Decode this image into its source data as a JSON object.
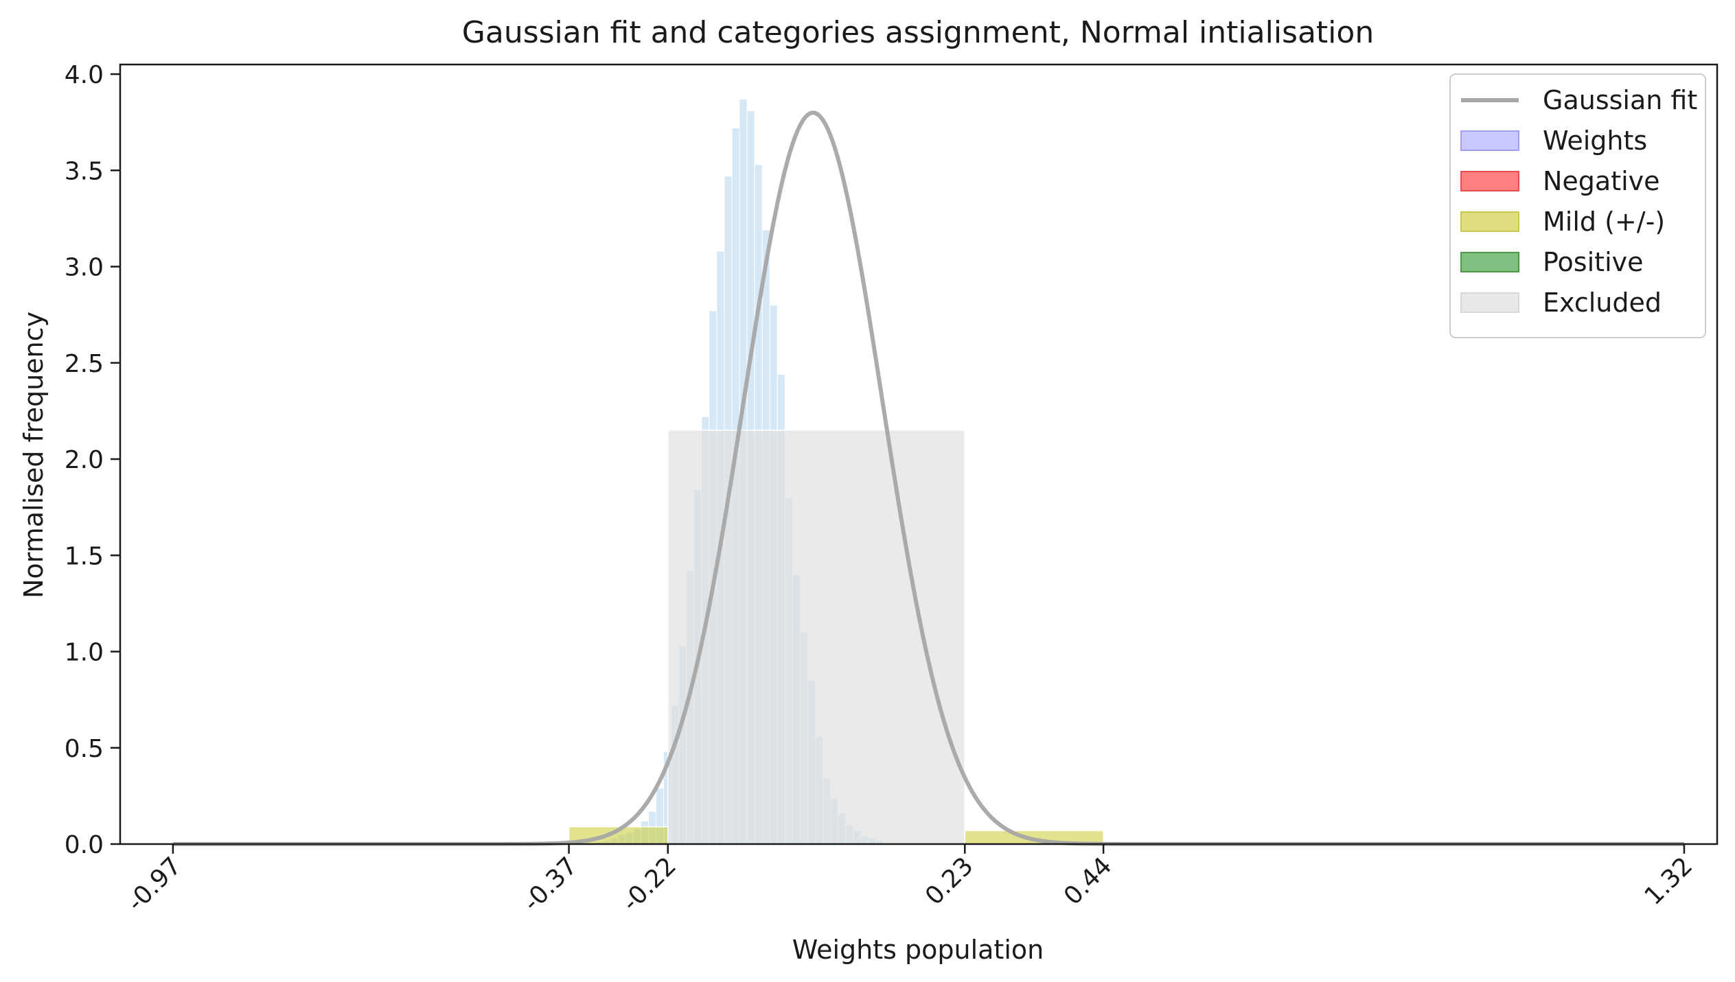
{
  "chart_data": {
    "type": "bar",
    "title": "Gaussian fit and categories assignment, Normal intialisation",
    "xlabel": "Weights population",
    "ylabel": "Normalised frequency",
    "xlim": [
      -1.05,
      1.37
    ],
    "ylim": [
      0,
      4.05
    ],
    "grid": false,
    "legend_position": "top-right",
    "x_ticks": [
      -0.97,
      -0.37,
      -0.22,
      0.23,
      0.44,
      1.32
    ],
    "x_tick_labels": [
      "-0.97",
      "-0.37",
      "-0.22",
      "0.23",
      "0.44",
      "1.32"
    ],
    "y_ticks": [
      0.0,
      0.5,
      1.0,
      1.5,
      2.0,
      2.5,
      3.0,
      3.5,
      4.0
    ],
    "y_tick_labels": [
      "0.0",
      "0.5",
      "1.0",
      "1.5",
      "2.0",
      "2.5",
      "3.0",
      "3.5",
      "4.0"
    ],
    "colors": {
      "gaussian_fit": "#a6a6a6",
      "weights": "#cfe3f3",
      "negative": "#ff6666",
      "mild": "#cccc33",
      "positive": "#339933",
      "excluded": "#e0e0e0"
    },
    "legend": [
      {
        "key": "gaussian_fit",
        "label": "Gaussian fit",
        "kind": "line"
      },
      {
        "key": "weights",
        "label": "Weights",
        "kind": "patch",
        "fill": "#c8c8ff",
        "stroke": "#a0a0ee"
      },
      {
        "key": "negative",
        "label": "Negative",
        "kind": "patch",
        "fill": "#ff8080",
        "stroke": "#e05050"
      },
      {
        "key": "mild",
        "label": "Mild (+/-)",
        "kind": "patch",
        "fill": "#dede80",
        "stroke": "#c8c850"
      },
      {
        "key": "positive",
        "label": "Positive",
        "kind": "patch",
        "fill": "#80c080",
        "stroke": "#4a9a4a"
      },
      {
        "key": "excluded",
        "label": "Excluded",
        "kind": "patch",
        "fill": "#e8e8e8",
        "stroke": "#d8d8d8"
      }
    ],
    "gaussian_fit": {
      "amplitude": 3.8,
      "mean": 0.0,
      "std": 0.105
    },
    "weights_histogram": {
      "bin_start": -0.33,
      "bin_width": 0.0115,
      "values": [
        0.01,
        0.02,
        0.03,
        0.05,
        0.06,
        0.08,
        0.12,
        0.17,
        0.29,
        0.48,
        0.72,
        1.03,
        1.42,
        1.84,
        2.22,
        2.77,
        3.08,
        3.47,
        3.72,
        3.87,
        3.81,
        3.53,
        3.19,
        2.8,
        2.44,
        1.8,
        1.4,
        1.1,
        0.85,
        0.56,
        0.34,
        0.24,
        0.16,
        0.1,
        0.07,
        0.04,
        0.03,
        0.02
      ]
    },
    "category_regions": [
      {
        "category": "Excluded",
        "x_start": -0.97,
        "x_end": -0.37,
        "height": 0.01
      },
      {
        "category": "Mild (+/-)",
        "x_start": -0.37,
        "x_end": -0.22,
        "height": 0.09
      },
      {
        "category": "Excluded",
        "x_start": -0.22,
        "x_end": 0.23,
        "height": 2.15
      },
      {
        "category": "Mild (+/-)",
        "x_start": 0.23,
        "x_end": 0.44,
        "height": 0.07
      },
      {
        "category": "Excluded",
        "x_start": 0.44,
        "x_end": 1.32,
        "height": 0.01
      }
    ]
  }
}
